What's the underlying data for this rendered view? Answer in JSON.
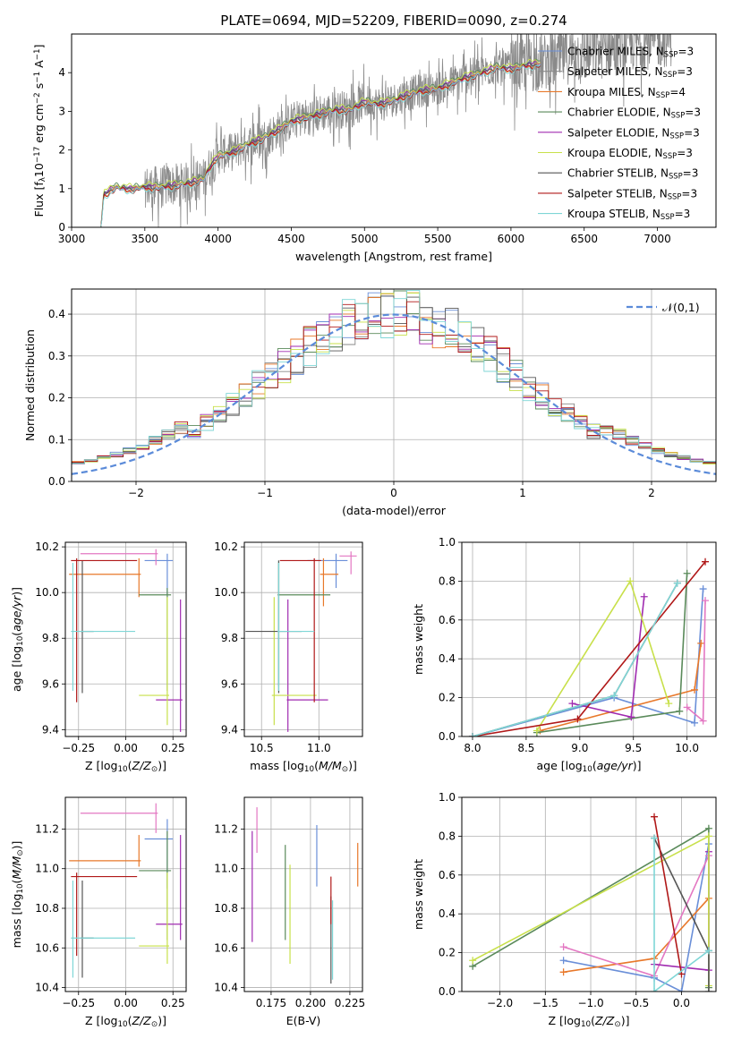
{
  "title": "PLATE=0694, MJD=52209, FIBERID=0090, z=0.274",
  "legend_colors": [
    "#6a8fd8",
    "#8a8a8a",
    "#e8782a",
    "#5a8a5a",
    "#a02bb0",
    "#c8e04a",
    "#555555",
    "#b01818",
    "#7fd6d6"
  ],
  "chart_data": [
    {
      "id": "spectrum",
      "type": "line",
      "title": "PLATE=0694, MJD=52209, FIBERID=0090, z=0.274",
      "xlabel": "wavelength [Angstrom, rest frame]",
      "ylabel": "Flux [f$_\\lambda$10$^{-17}$ erg cm$^{-2}$ s$^{-1}$ A$^{-1}$]",
      "xlim": [
        3000,
        7400
      ],
      "ylim": [
        0,
        5
      ],
      "xticks": [
        "3000",
        "3500",
        "4000",
        "4500",
        "5000",
        "5500",
        "6000",
        "6500",
        "7000"
      ],
      "yticks": [
        "0",
        "1",
        "2",
        "3",
        "4"
      ],
      "legend": [
        {
          "label": "Chabrier MILES, N$_{SSP}$=3",
          "color": "#6a8fd8"
        },
        {
          "label": "Salpeter MILES, N$_{SSP}$=3",
          "color": "#8a8a8a"
        },
        {
          "label": "Kroupa MILES, N$_{SSP}$=4",
          "color": "#e8782a"
        },
        {
          "label": "Chabrier ELODIE, N$_{SSP}$=3",
          "color": "#5a8a5a"
        },
        {
          "label": "Salpeter ELODIE, N$_{SSP}$=3",
          "color": "#a02bb0"
        },
        {
          "label": "Kroupa ELODIE, N$_{SSP}$=3",
          "color": "#c8e04a"
        },
        {
          "label": "Chabrier STELIB, N$_{SSP}$=3",
          "color": "#555555"
        },
        {
          "label": "Salpeter STELIB, N$_{SSP}$=3",
          "color": "#b01818"
        },
        {
          "label": "Kroupa STELIB, N$_{SSP}$=3",
          "color": "#7fd6d6"
        }
      ],
      "model_continuum": {
        "x": [
          3200,
          3220,
          3300,
          3400,
          3500,
          3600,
          3700,
          3800,
          3900,
          3950,
          4000,
          4100,
          4200,
          4300,
          4400,
          4500,
          4600,
          4700,
          4800,
          4900,
          5000,
          5100,
          5200,
          5300,
          5400,
          5500,
          5600,
          5700,
          5800,
          5900,
          6000,
          6100,
          6200,
          6300,
          6400,
          6500,
          6600,
          6700,
          6800,
          6900,
          7000,
          7100,
          7200,
          7300,
          7400
        ],
        "y": [
          0.0,
          0.85,
          1.05,
          1.0,
          1.05,
          1.05,
          1.1,
          1.15,
          1.25,
          1.6,
          1.85,
          1.95,
          2.15,
          2.3,
          2.5,
          2.75,
          2.85,
          2.95,
          3.05,
          3.05,
          3.25,
          3.2,
          3.3,
          3.45,
          3.55,
          3.6,
          3.75,
          3.9,
          4.0,
          4.15,
          4.1,
          4.2,
          4.25,
          4.3,
          4.45,
          4.5,
          4.55,
          4.65,
          4.75,
          4.8,
          4.85,
          4.9,
          5.0,
          5.05,
          5.1
        ]
      },
      "observed_range": [
        3200,
        7100
      ]
    },
    {
      "id": "residuals",
      "type": "line",
      "xlabel": "(data-model)/error",
      "ylabel": "Normed distribution",
      "xlim": [
        -2.5,
        2.5
      ],
      "ylim": [
        0,
        0.46
      ],
      "xticks": [
        "−2",
        "−1",
        "0",
        "1",
        "2"
      ],
      "yticks": [
        "0.0",
        "0.1",
        "0.2",
        "0.3",
        "0.4"
      ],
      "legend": [
        {
          "label": "$\\mathcal{N}(0,1)$",
          "color": "#5b8bd9"
        }
      ]
    },
    {
      "id": "age-vs-Z",
      "type": "scatter",
      "xlabel": "Z [log$_{10}$($Z/Z_\\odot$)]",
      "ylabel": "age  [log$_{10}$($age/yr$)]",
      "xlim": [
        -0.32,
        0.32
      ],
      "ylim": [
        9.37,
        10.22
      ],
      "xticks": [
        "−0.25",
        "0.00",
        "0.25"
      ],
      "yticks": [
        "9.4",
        "9.6",
        "9.8",
        "10.0",
        "10.2"
      ],
      "errorbars": [
        {
          "color": "#6a8fd8",
          "x": 0.22,
          "xerr": [
            0.12,
            0.03
          ],
          "y": 10.14,
          "yerr": [
            0.15,
            0.03
          ]
        },
        {
          "color": "#e8782a",
          "x": 0.07,
          "xerr": [
            0.37,
            0.01
          ],
          "y": 10.08,
          "yerr": [
            0.1,
            0.07
          ]
        },
        {
          "color": "#e377c2",
          "x": 0.16,
          "xerr": [
            0.4,
            0.01
          ],
          "y": 10.17,
          "yerr": [
            0.05,
            0.02
          ]
        },
        {
          "color": "#5a8a5a",
          "x": 0.22,
          "xerr": [
            0.15,
            0.02
          ],
          "y": 9.99,
          "yerr": [
            0.42,
            0.03
          ]
        },
        {
          "color": "#a02bb0",
          "x": 0.29,
          "xerr": [
            0.13,
            0.01
          ],
          "y": 9.53,
          "yerr": [
            0.14,
            0.44
          ]
        },
        {
          "color": "#c8e04a",
          "x": 0.22,
          "xerr": [
            0.15,
            0.01
          ],
          "y": 9.55,
          "yerr": [
            0.13,
            0.43
          ]
        },
        {
          "color": "#555555",
          "x": -0.23,
          "xerr": [
            0.01,
            0.06
          ],
          "y": 9.83,
          "yerr": [
            0.27,
            0.31
          ]
        },
        {
          "color": "#b01818",
          "x": -0.26,
          "xerr": [
            0.03,
            0.32
          ],
          "y": 10.14,
          "yerr": [
            0.62,
            0.01
          ]
        },
        {
          "color": "#7fd6d6",
          "x": -0.28,
          "xerr": [
            0.01,
            0.33
          ],
          "y": 9.83,
          "yerr": [
            0.26,
            0.3
          ]
        }
      ]
    },
    {
      "id": "age-vs-mass",
      "type": "scatter",
      "xlabel": "mass [log$_{10}$($M/M_\\odot$)]",
      "ylabel": "",
      "xlim": [
        10.35,
        11.38
      ],
      "ylim": [
        9.37,
        10.22
      ],
      "xticks": [
        "10.5",
        "11.0"
      ],
      "yticks": [
        "9.4",
        "9.6",
        "9.8",
        "10.0",
        "10.2"
      ],
      "errorbars": [
        {
          "color": "#6a8fd8",
          "x": 11.15,
          "xerr": [
            0.25,
            0.1
          ],
          "y": 10.14,
          "yerr": [
            0.12,
            0.03
          ]
        },
        {
          "color": "#e8782a",
          "x": 11.04,
          "xerr": [
            0.03,
            0.13
          ],
          "y": 10.08,
          "yerr": [
            0.14,
            0.07
          ]
        },
        {
          "color": "#e377c2",
          "x": 11.28,
          "xerr": [
            0.1,
            0.05
          ],
          "y": 10.16,
          "yerr": [
            0.08,
            0.02
          ]
        },
        {
          "color": "#5a8a5a",
          "x": 10.65,
          "xerr": [
            0.01,
            0.45
          ],
          "y": 9.99,
          "yerr": [
            0.4,
            0.15
          ]
        },
        {
          "color": "#a02bb0",
          "x": 10.73,
          "xerr": [
            0.01,
            0.35
          ],
          "y": 9.53,
          "yerr": [
            0.14,
            0.44
          ]
        },
        {
          "color": "#c8e04a",
          "x": 10.61,
          "xerr": [
            0.02,
            0.37
          ],
          "y": 9.55,
          "yerr": [
            0.13,
            0.43
          ]
        },
        {
          "color": "#555555",
          "x": 10.65,
          "xerr": [
            0.29,
            0.2
          ],
          "y": 9.83,
          "yerr": [
            0.27,
            0.31
          ]
        },
        {
          "color": "#b01818",
          "x": 10.96,
          "xerr": [
            0.3,
            0.06
          ],
          "y": 10.14,
          "yerr": [
            0.62,
            0.01
          ]
        },
        {
          "color": "#7fd6d6",
          "x": 10.65,
          "xerr": [
            0.01,
            0.31
          ],
          "y": 9.83,
          "yerr": [
            0.26,
            0.3
          ]
        }
      ]
    },
    {
      "id": "weight-vs-age",
      "type": "line",
      "xlabel": "age  [log$_{10}$($age/yr$)]",
      "ylabel": "mass weight",
      "xlim": [
        7.9,
        10.27
      ],
      "ylim": [
        0,
        1.0
      ],
      "xticks": [
        "8.0",
        "8.5",
        "9.0",
        "9.5",
        "10.0"
      ],
      "yticks": [
        "0.0",
        "0.2",
        "0.4",
        "0.6",
        "0.8",
        "1.0"
      ],
      "series": [
        {
          "color": "#6a8fd8",
          "x": [
            8.0,
            9.32,
            10.07,
            10.15
          ],
          "y": [
            0.0,
            0.2,
            0.07,
            0.76
          ]
        },
        {
          "color": "#e8782a",
          "x": [
            8.63,
            10.07,
            10.13
          ],
          "y": [
            0.03,
            0.24,
            0.48
          ]
        },
        {
          "color": "#e377c2",
          "x": [
            10.0,
            10.15,
            10.17
          ],
          "y": [
            0.15,
            0.08,
            0.7
          ]
        },
        {
          "color": "#5a8a5a",
          "x": [
            8.6,
            9.93,
            10.0
          ],
          "y": [
            0.02,
            0.13,
            0.84
          ]
        },
        {
          "color": "#a02bb0",
          "x": [
            8.93,
            9.48,
            9.6
          ],
          "y": [
            0.17,
            0.1,
            0.72
          ]
        },
        {
          "color": "#c8e04a",
          "x": [
            8.6,
            9.47,
            9.83
          ],
          "y": [
            0.03,
            0.8,
            0.17
          ]
        },
        {
          "color": "#555555",
          "x": [
            8.0,
            9.32,
            9.91
          ],
          "y": [
            0.0,
            0.21,
            0.79
          ]
        },
        {
          "color": "#b01818",
          "x": [
            8.0,
            8.98,
            10.17
          ],
          "y": [
            0.0,
            0.09,
            0.9
          ]
        },
        {
          "color": "#7fd6d6",
          "x": [
            8.0,
            9.32,
            9.91
          ],
          "y": [
            0.0,
            0.21,
            0.79
          ]
        }
      ]
    },
    {
      "id": "mass-vs-Z",
      "type": "scatter",
      "xlabel": "Z [log$_{10}$($Z/Z_\\odot$)]",
      "ylabel": "mass [log$_{10}$($M/M_\\odot$)]",
      "xlim": [
        -0.32,
        0.32
      ],
      "ylim": [
        10.38,
        11.36
      ],
      "xticks": [
        "−0.25",
        "0.00",
        "0.25"
      ],
      "yticks": [
        "10.4",
        "10.6",
        "10.8",
        "11.0",
        "11.2"
      ],
      "errorbars": [
        {
          "color": "#6a8fd8",
          "x": 0.22,
          "xerr": [
            0.12,
            0.03
          ],
          "y": 11.15,
          "yerr": [
            0.25,
            0.1
          ]
        },
        {
          "color": "#e8782a",
          "x": 0.07,
          "xerr": [
            0.37,
            0.01
          ],
          "y": 11.04,
          "yerr": [
            0.03,
            0.13
          ]
        },
        {
          "color": "#e377c2",
          "x": 0.16,
          "xerr": [
            0.4,
            0.01
          ],
          "y": 11.28,
          "yerr": [
            0.1,
            0.05
          ]
        },
        {
          "color": "#5a8a5a",
          "x": 0.22,
          "xerr": [
            0.15,
            0.02
          ],
          "y": 10.99,
          "yerr": [
            0.35,
            0.2
          ]
        },
        {
          "color": "#a02bb0",
          "x": 0.29,
          "xerr": [
            0.13,
            0.01
          ],
          "y": 10.72,
          "yerr": [
            0.08,
            0.45
          ]
        },
        {
          "color": "#c8e04a",
          "x": 0.22,
          "xerr": [
            0.15,
            0.01
          ],
          "y": 10.61,
          "yerr": [
            0.09,
            0.37
          ]
        },
        {
          "color": "#555555",
          "x": -0.23,
          "xerr": [
            0.01,
            0.06
          ],
          "y": 10.65,
          "yerr": [
            0.2,
            0.29
          ]
        },
        {
          "color": "#b01818",
          "x": -0.26,
          "xerr": [
            0.03,
            0.32
          ],
          "y": 10.96,
          "yerr": [
            0.4,
            0.02
          ]
        },
        {
          "color": "#7fd6d6",
          "x": -0.28,
          "xerr": [
            0.01,
            0.33
          ],
          "y": 10.65,
          "yerr": [
            0.2,
            0.29
          ]
        }
      ]
    },
    {
      "id": "mass-vs-ebv",
      "type": "scatter",
      "xlabel": "E(B-V)",
      "ylabel": "",
      "xlim": [
        0.158,
        0.233
      ],
      "ylim": [
        10.38,
        11.36
      ],
      "xticks": [
        "0.175",
        "0.200",
        "0.225"
      ],
      "yticks": [
        "10.4",
        "10.6",
        "10.8",
        "11.0",
        "11.2"
      ],
      "errorbars": [
        {
          "color": "#6a8fd8",
          "x": 0.204,
          "xerr": [
            0,
            0
          ],
          "y": 11.05,
          "yerr": [
            0.14,
            0.17
          ]
        },
        {
          "color": "#e8782a",
          "x": 0.23,
          "xerr": [
            0,
            0
          ],
          "y": 11.02,
          "yerr": [
            0.11,
            0.11
          ]
        },
        {
          "color": "#e377c2",
          "x": 0.166,
          "xerr": [
            0,
            0
          ],
          "y": 11.2,
          "yerr": [
            0.12,
            0.11
          ]
        },
        {
          "color": "#5a8a5a",
          "x": 0.184,
          "xerr": [
            0,
            0
          ],
          "y": 10.88,
          "yerr": [
            0.24,
            0.24
          ]
        },
        {
          "color": "#a02bb0",
          "x": 0.163,
          "xerr": [
            0,
            0
          ],
          "y": 10.95,
          "yerr": [
            0.32,
            0.24
          ]
        },
        {
          "color": "#c8e04a",
          "x": 0.187,
          "xerr": [
            0,
            0
          ],
          "y": 10.77,
          "yerr": [
            0.25,
            0.25
          ]
        },
        {
          "color": "#555555",
          "x": 0.213,
          "xerr": [
            0,
            0
          ],
          "y": 10.64,
          "yerr": [
            0.22,
            0.22
          ]
        },
        {
          "color": "#b01818",
          "x": 0.213,
          "xerr": [
            0,
            0
          ],
          "y": 10.84,
          "yerr": [
            0.12,
            0.12
          ]
        },
        {
          "color": "#7fd6d6",
          "x": 0.214,
          "xerr": [
            0,
            0
          ],
          "y": 10.64,
          "yerr": [
            0.2,
            0.2
          ]
        }
      ]
    },
    {
      "id": "weight-vs-Z",
      "type": "line",
      "xlabel": "Z [log$_{10}$($Z/Z_\\odot$)]",
      "ylabel": "mass weight",
      "xlim": [
        -2.42,
        0.38
      ],
      "ylim": [
        0,
        1.0
      ],
      "xticks": [
        "−2.0",
        "−1.5",
        "−1.0",
        "−0.5",
        "0.0"
      ],
      "yticks": [
        "0.0",
        "0.2",
        "0.4",
        "0.6",
        "0.8",
        "1.0"
      ],
      "series": [
        {
          "color": "#6a8fd8",
          "x": [
            -1.3,
            -0.3,
            0.0,
            0.3
          ],
          "y": [
            0.16,
            0.07,
            0.0,
            0.76
          ]
        },
        {
          "color": "#e8782a",
          "x": [
            -1.3,
            -0.3,
            0.3
          ],
          "y": [
            0.1,
            0.17,
            0.48
          ]
        },
        {
          "color": "#e377c2",
          "x": [
            -1.3,
            -0.3,
            0.3
          ],
          "y": [
            0.23,
            0.08,
            0.7
          ]
        },
        {
          "color": "#5a8a5a",
          "x": [
            -2.3,
            0.3,
            0.3
          ],
          "y": [
            0.13,
            0.84,
            0.02
          ]
        },
        {
          "color": "#a02bb0",
          "x": [
            -0.3,
            0.3,
            0.3
          ],
          "y": [
            0.14,
            0.11,
            0.72
          ]
        },
        {
          "color": "#c8e04a",
          "x": [
            -2.3,
            0.3,
            0.3
          ],
          "y": [
            0.16,
            0.8,
            0.03
          ]
        },
        {
          "color": "#555555",
          "x": [
            -0.3,
            0.3,
            0.3
          ],
          "y": [
            0.79,
            0.21,
            0.0
          ]
        },
        {
          "color": "#b01818",
          "x": [
            -0.3,
            0.0
          ],
          "y": [
            0.9,
            0.09
          ]
        },
        {
          "color": "#7fd6d6",
          "x": [
            -0.3,
            -0.3,
            0.3
          ],
          "y": [
            0.79,
            0.0,
            0.21
          ]
        }
      ]
    }
  ]
}
